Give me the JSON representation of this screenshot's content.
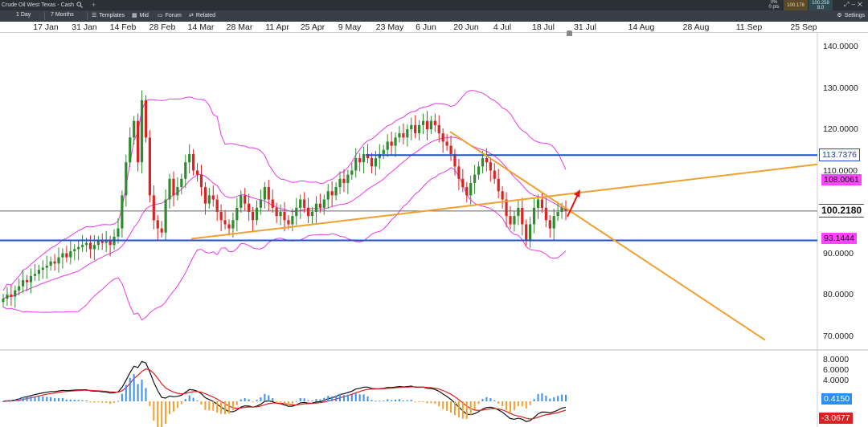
{
  "window": {
    "instrument": "Crude Oil West Texas - Cash",
    "quote_change_pct": "0%",
    "quote_change_pts": "0 pts",
    "sell": "100.178",
    "buy": "100.258",
    "spread": "8.0"
  },
  "toolbar": {
    "interval_label": "1 Day",
    "range_label": "7 Months",
    "templates_label": "Templates",
    "mid_label": "Mid",
    "forum_label": "Forum",
    "related_label": "Related",
    "settings_label": "Settings"
  },
  "colors": {
    "bull": "#2e8b2e",
    "bear": "#dd2222",
    "bollinger": "#e83ae8",
    "trend": "#f0a030",
    "support": "#1f4fd8",
    "current": "#555555"
  },
  "chart_data": [
    {
      "type": "candlestick",
      "xaxis_labels": [
        "17 Jan",
        "31 Jan",
        "14 Feb",
        "28 Feb",
        "14 Mar",
        "28 Mar",
        "11 Apr",
        "25 Apr",
        "9 May",
        "23 May",
        "6 Jun",
        "20 Jun",
        "4 Jul",
        "18 Jul",
        "31 Jul",
        "14 Aug",
        "28 Aug",
        "11 Sep",
        "25 Sep"
      ],
      "yaxis_ticks": [
        "140.0000",
        "130.0000",
        "120.0000",
        "110.0000",
        "90.0000",
        "80.0000",
        "70.0000"
      ],
      "ylim": [
        68,
        143
      ],
      "closes": [
        79,
        80,
        79.5,
        81,
        82,
        83.5,
        83,
        84.5,
        85,
        86,
        86.5,
        87,
        88,
        87.5,
        89,
        90,
        89,
        90.5,
        91,
        91.5,
        92,
        92.5,
        91,
        92,
        93,
        92.5,
        93,
        92,
        94,
        96,
        104,
        112,
        118,
        122,
        112,
        127,
        118,
        104,
        98,
        96,
        95,
        103,
        108,
        104,
        106,
        108,
        112,
        114,
        110,
        109,
        106,
        102,
        104,
        103,
        100,
        98,
        97,
        96,
        98,
        101,
        104,
        102,
        100,
        98,
        101,
        103,
        106,
        103,
        101,
        99,
        100,
        98,
        97,
        99,
        101,
        103,
        101,
        99,
        100,
        102,
        101,
        103,
        105,
        104,
        106,
        108,
        107,
        109,
        110,
        113,
        112,
        114,
        113,
        111,
        113,
        114,
        115,
        117,
        116,
        118,
        119,
        118,
        120,
        121,
        119,
        121,
        122,
        120,
        122,
        121,
        119,
        117,
        116,
        114,
        111,
        108,
        106,
        104,
        107,
        109,
        111,
        113,
        112,
        110,
        108,
        105,
        103,
        99,
        97,
        99,
        101,
        97,
        93,
        97,
        101,
        103,
        101,
        98,
        96,
        99,
        100,
        101,
        100.22
      ],
      "current_price": "100.2180",
      "level_labels": {
        "resistance": "113.7376",
        "upper_band": "108.0061",
        "lower_band": "93.1444"
      }
    },
    {
      "type": "macd",
      "yaxis_ticks": [
        "8.0000",
        "6.0000",
        "4.0000"
      ],
      "ylim": [
        -4.5,
        9.5
      ],
      "histogram_label": "0.4150",
      "signal_label": "-3.0677"
    }
  ]
}
